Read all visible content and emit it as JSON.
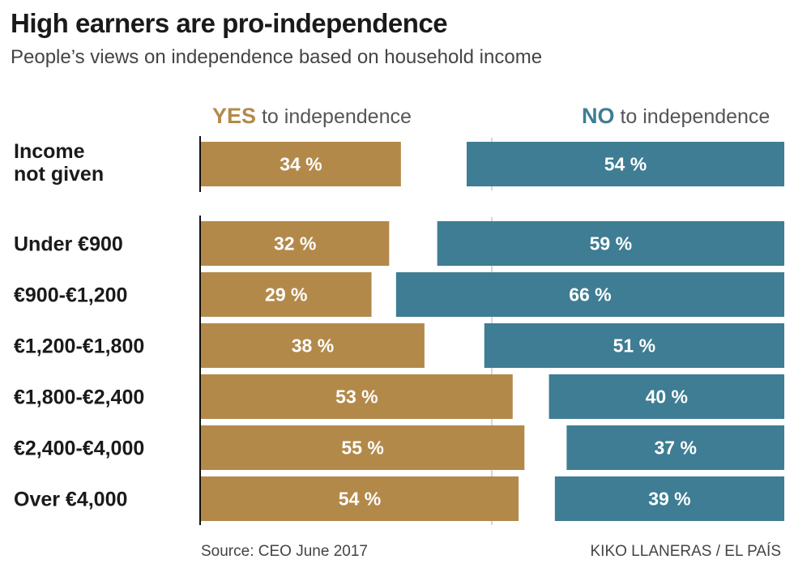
{
  "chart_data": {
    "type": "bar",
    "title": "High earners are pro-independence",
    "subtitle": "People’s views on independence based on household income",
    "categories": [
      "Income not given",
      "Under €900",
      "€900-€1,200",
      "€1,200-€1,800",
      "€1,800-€2,400",
      "€2,400-€4,000",
      "Over €4,000"
    ],
    "series": [
      {
        "name": "YES to independence",
        "values": [
          34,
          32,
          29,
          38,
          53,
          55,
          54
        ],
        "labels": [
          "34 %",
          "32 %",
          "29 %",
          "38 %",
          "53 %",
          "55 %",
          "54 %"
        ],
        "color": "#b3894a"
      },
      {
        "name": "NO to independence",
        "values": [
          54,
          59,
          66,
          51,
          40,
          37,
          39
        ],
        "labels": [
          "54 %",
          "59 %",
          "66 %",
          "51 %",
          "40 %",
          "37 %",
          "39 %"
        ],
        "color": "#3e7d93"
      }
    ],
    "legend": {
      "yes_strong": "YES",
      "yes_rest": "to independence",
      "no_strong": "NO",
      "no_rest": "to independence"
    },
    "source": "Source: CEO June 2017",
    "credit": "KIKO LLANERAS / EL PAÍS"
  }
}
